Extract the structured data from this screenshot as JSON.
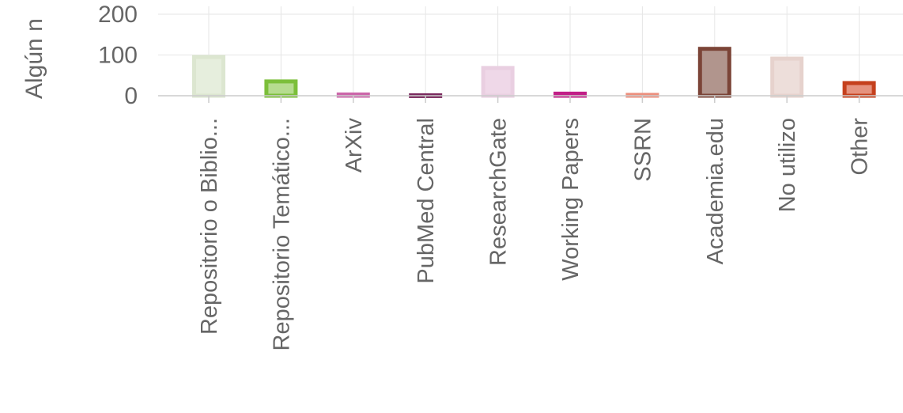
{
  "chart_data": {
    "type": "bar",
    "ylabel": "Algún n",
    "yticks": [
      0,
      100,
      200
    ],
    "ylim": [
      0,
      200
    ],
    "grid": true,
    "categories": [
      "Repositorio o Biblio...",
      "Repositorio Temático...",
      "ArXiv",
      "PubMed Central",
      "ResearchGate",
      "Working Papers",
      "SSRN",
      "Academia.edu",
      "No utilizo",
      "Other"
    ],
    "values": [
      100,
      40,
      8,
      6,
      73,
      10,
      7,
      120,
      96,
      36
    ],
    "bar_fill_colors": [
      "#e6eedd",
      "#b6dc8f",
      "#e7a6d2",
      "#b1809e",
      "#efd8e8",
      "#e377b5",
      "#f2b4a6",
      "#b1958d",
      "#eddeda",
      "#e5927e"
    ],
    "bar_stroke_colors": [
      "#dce6d0",
      "#7cbf3a",
      "#cc66aa",
      "#7a2a5e",
      "#e9cfe1",
      "#c21e87",
      "#ec8f7d",
      "#7b4437",
      "#e6d2cd",
      "#c5401d"
    ]
  }
}
